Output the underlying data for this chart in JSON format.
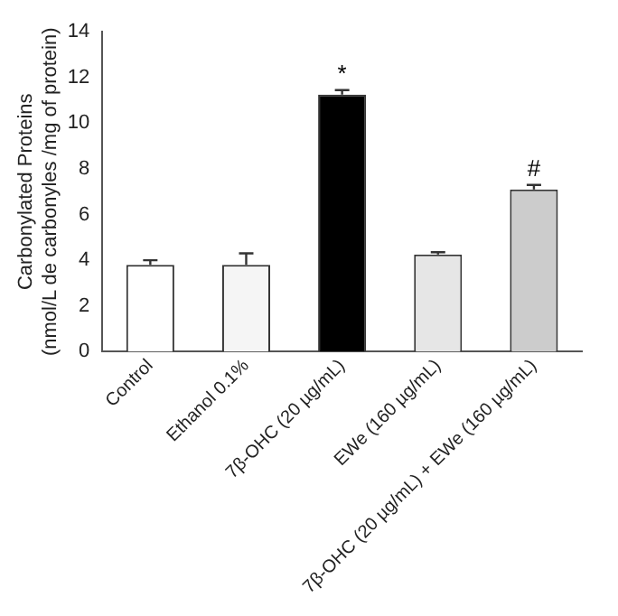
{
  "chart_data": {
    "type": "bar",
    "ylabel": [
      "Carbonylated Proteins",
      "(nmol/L de carbonyles /mg of protein)"
    ],
    "categories": [
      "Control",
      "Ethanol 0.1%",
      "7β-OHC (20 µg/mL)",
      "EWe (160 µg/mL)",
      "7β-OHC (20 µg/mL) + EWe (160 µg/mL)"
    ],
    "values": [
      3.8,
      3.8,
      11.25,
      4.25,
      7.1
    ],
    "errors": [
      0.2,
      0.5,
      0.2,
      0.1,
      0.2
    ],
    "colors": [
      "#ffffff",
      "#f5f5f5",
      "#000000",
      "#e6e6e6",
      "#cccccc"
    ],
    "ylim": [
      0,
      14
    ],
    "yticks": [
      0,
      2,
      4,
      6,
      8,
      10,
      12,
      14
    ],
    "annotations": [
      {
        "text": "*",
        "x": "7β-OHC (20 µg/mL)",
        "y": 11.45
      },
      {
        "text": "#",
        "x": "7β-OHC (20 µg/mL) + EWe (160 µg/mL)",
        "y": 7.3
      }
    ],
    "grid": false,
    "legend": false
  }
}
